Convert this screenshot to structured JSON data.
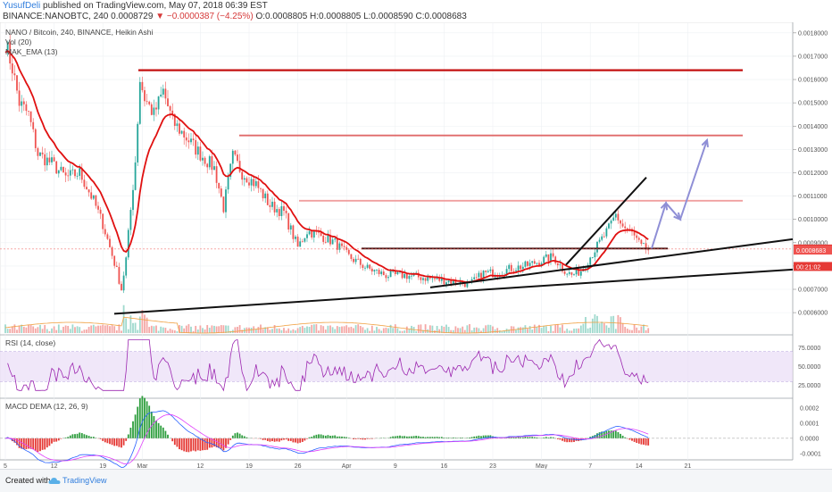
{
  "header": {
    "username": "YusufDeli",
    "published": "published on TradingView.com, May 07, 2018 06:39 EST",
    "symbol_line": "BINANCE:NANOBTC, 240",
    "last": "0.0008729",
    "change": "−0.0000387 (−4.25%)",
    "ohlc": "O:0.0008805 H:0.0008805 L:0.0008590 C:0.0008683"
  },
  "legend": {
    "title": "NANO / Bitcoin, 240, BINANCE, Heikin Ashi",
    "vol": "Vol (20)",
    "mak": "MAK_EMA (13)",
    "rsi": "RSI (14, close)",
    "macd": "MACD DEMA (12, 26, 9)"
  },
  "price_tags": [
    "0.0008729",
    "0.0008683",
    "00:21:02"
  ],
  "footer": {
    "created": "Created with",
    "brand": "TradingView"
  },
  "colors": {
    "up": "#26a69a",
    "down": "#ef5350",
    "ema": "#e01010",
    "rsi": "#9c27b0",
    "resistance": "#c41010",
    "arrow": "#8f8fd6"
  },
  "chart_data": {
    "type": "candlestick",
    "x_labels": [
      "5",
      "12",
      "19",
      "Mar",
      "12",
      "19",
      "26",
      "Apr",
      "9",
      "16",
      "23",
      "May",
      "7",
      "14",
      "21"
    ],
    "price_axis": {
      "ticks": [
        "0.0018000",
        "0.0017000",
        "0.0016000",
        "0.0015000",
        "0.0014000",
        "0.0013000",
        "0.0012000",
        "0.0011000",
        "0.0010000",
        "0.0009000",
        "0.0008000",
        "0.0007000",
        "0.0006000"
      ],
      "range": [
        0.00052,
        0.00183
      ]
    },
    "price_path": [
      [
        0,
        0.00176
      ],
      [
        3,
        0.00165
      ],
      [
        6,
        0.0015
      ],
      [
        10,
        0.00145
      ],
      [
        14,
        0.00128
      ],
      [
        20,
        0.00124
      ],
      [
        26,
        0.00118
      ],
      [
        32,
        0.0012
      ],
      [
        38,
        0.00108
      ],
      [
        42,
        0.00098
      ],
      [
        45,
        0.00088
      ],
      [
        48,
        0.00078
      ],
      [
        50,
        0.0007
      ],
      [
        52,
        0.00083
      ],
      [
        56,
        0.00125
      ],
      [
        58,
        0.0016
      ],
      [
        60,
        0.00152
      ],
      [
        64,
        0.00145
      ],
      [
        68,
        0.00155
      ],
      [
        72,
        0.00142
      ],
      [
        78,
        0.00135
      ],
      [
        84,
        0.00128
      ],
      [
        90,
        0.00122
      ],
      [
        94,
        0.00105
      ],
      [
        98,
        0.00127
      ],
      [
        102,
        0.0012
      ],
      [
        108,
        0.00115
      ],
      [
        114,
        0.00106
      ],
      [
        120,
        0.00103
      ],
      [
        126,
        0.00088
      ],
      [
        130,
        0.00095
      ],
      [
        136,
        0.00093
      ],
      [
        142,
        0.0009
      ],
      [
        148,
        0.00084
      ],
      [
        156,
        0.00079
      ],
      [
        164,
        0.00076
      ],
      [
        172,
        0.00076
      ],
      [
        180,
        0.00075
      ],
      [
        188,
        0.00074
      ],
      [
        196,
        0.00073
      ],
      [
        200,
        0.00072
      ],
      [
        206,
        0.00077
      ],
      [
        212,
        0.00077
      ],
      [
        218,
        0.00079
      ],
      [
        224,
        0.0008
      ],
      [
        230,
        0.00082
      ],
      [
        236,
        0.00084
      ],
      [
        240,
        0.00079
      ],
      [
        244,
        0.00076
      ],
      [
        248,
        0.00078
      ],
      [
        252,
        0.00084
      ],
      [
        256,
        0.0009
      ],
      [
        260,
        0.00096
      ],
      [
        263,
        0.00102
      ],
      [
        266,
        0.00097
      ],
      [
        270,
        0.00094
      ],
      [
        274,
        0.00088
      ],
      [
        277,
        0.00087
      ]
    ],
    "total_bars": 278,
    "resistance_levels": [
      0.00164,
      0.00136,
      0.00108
    ],
    "support_level": 0.000875,
    "rsi": {
      "ticks": [
        "75.0000",
        "50.0000",
        "25.0000"
      ],
      "range": [
        10,
        90
      ],
      "band": [
        30,
        70
      ]
    },
    "macd": {
      "ticks": [
        "0.0002",
        "0.0001",
        "0.0000",
        "-0.0001"
      ],
      "range": [
        -0.00013,
        0.00024
      ]
    }
  }
}
